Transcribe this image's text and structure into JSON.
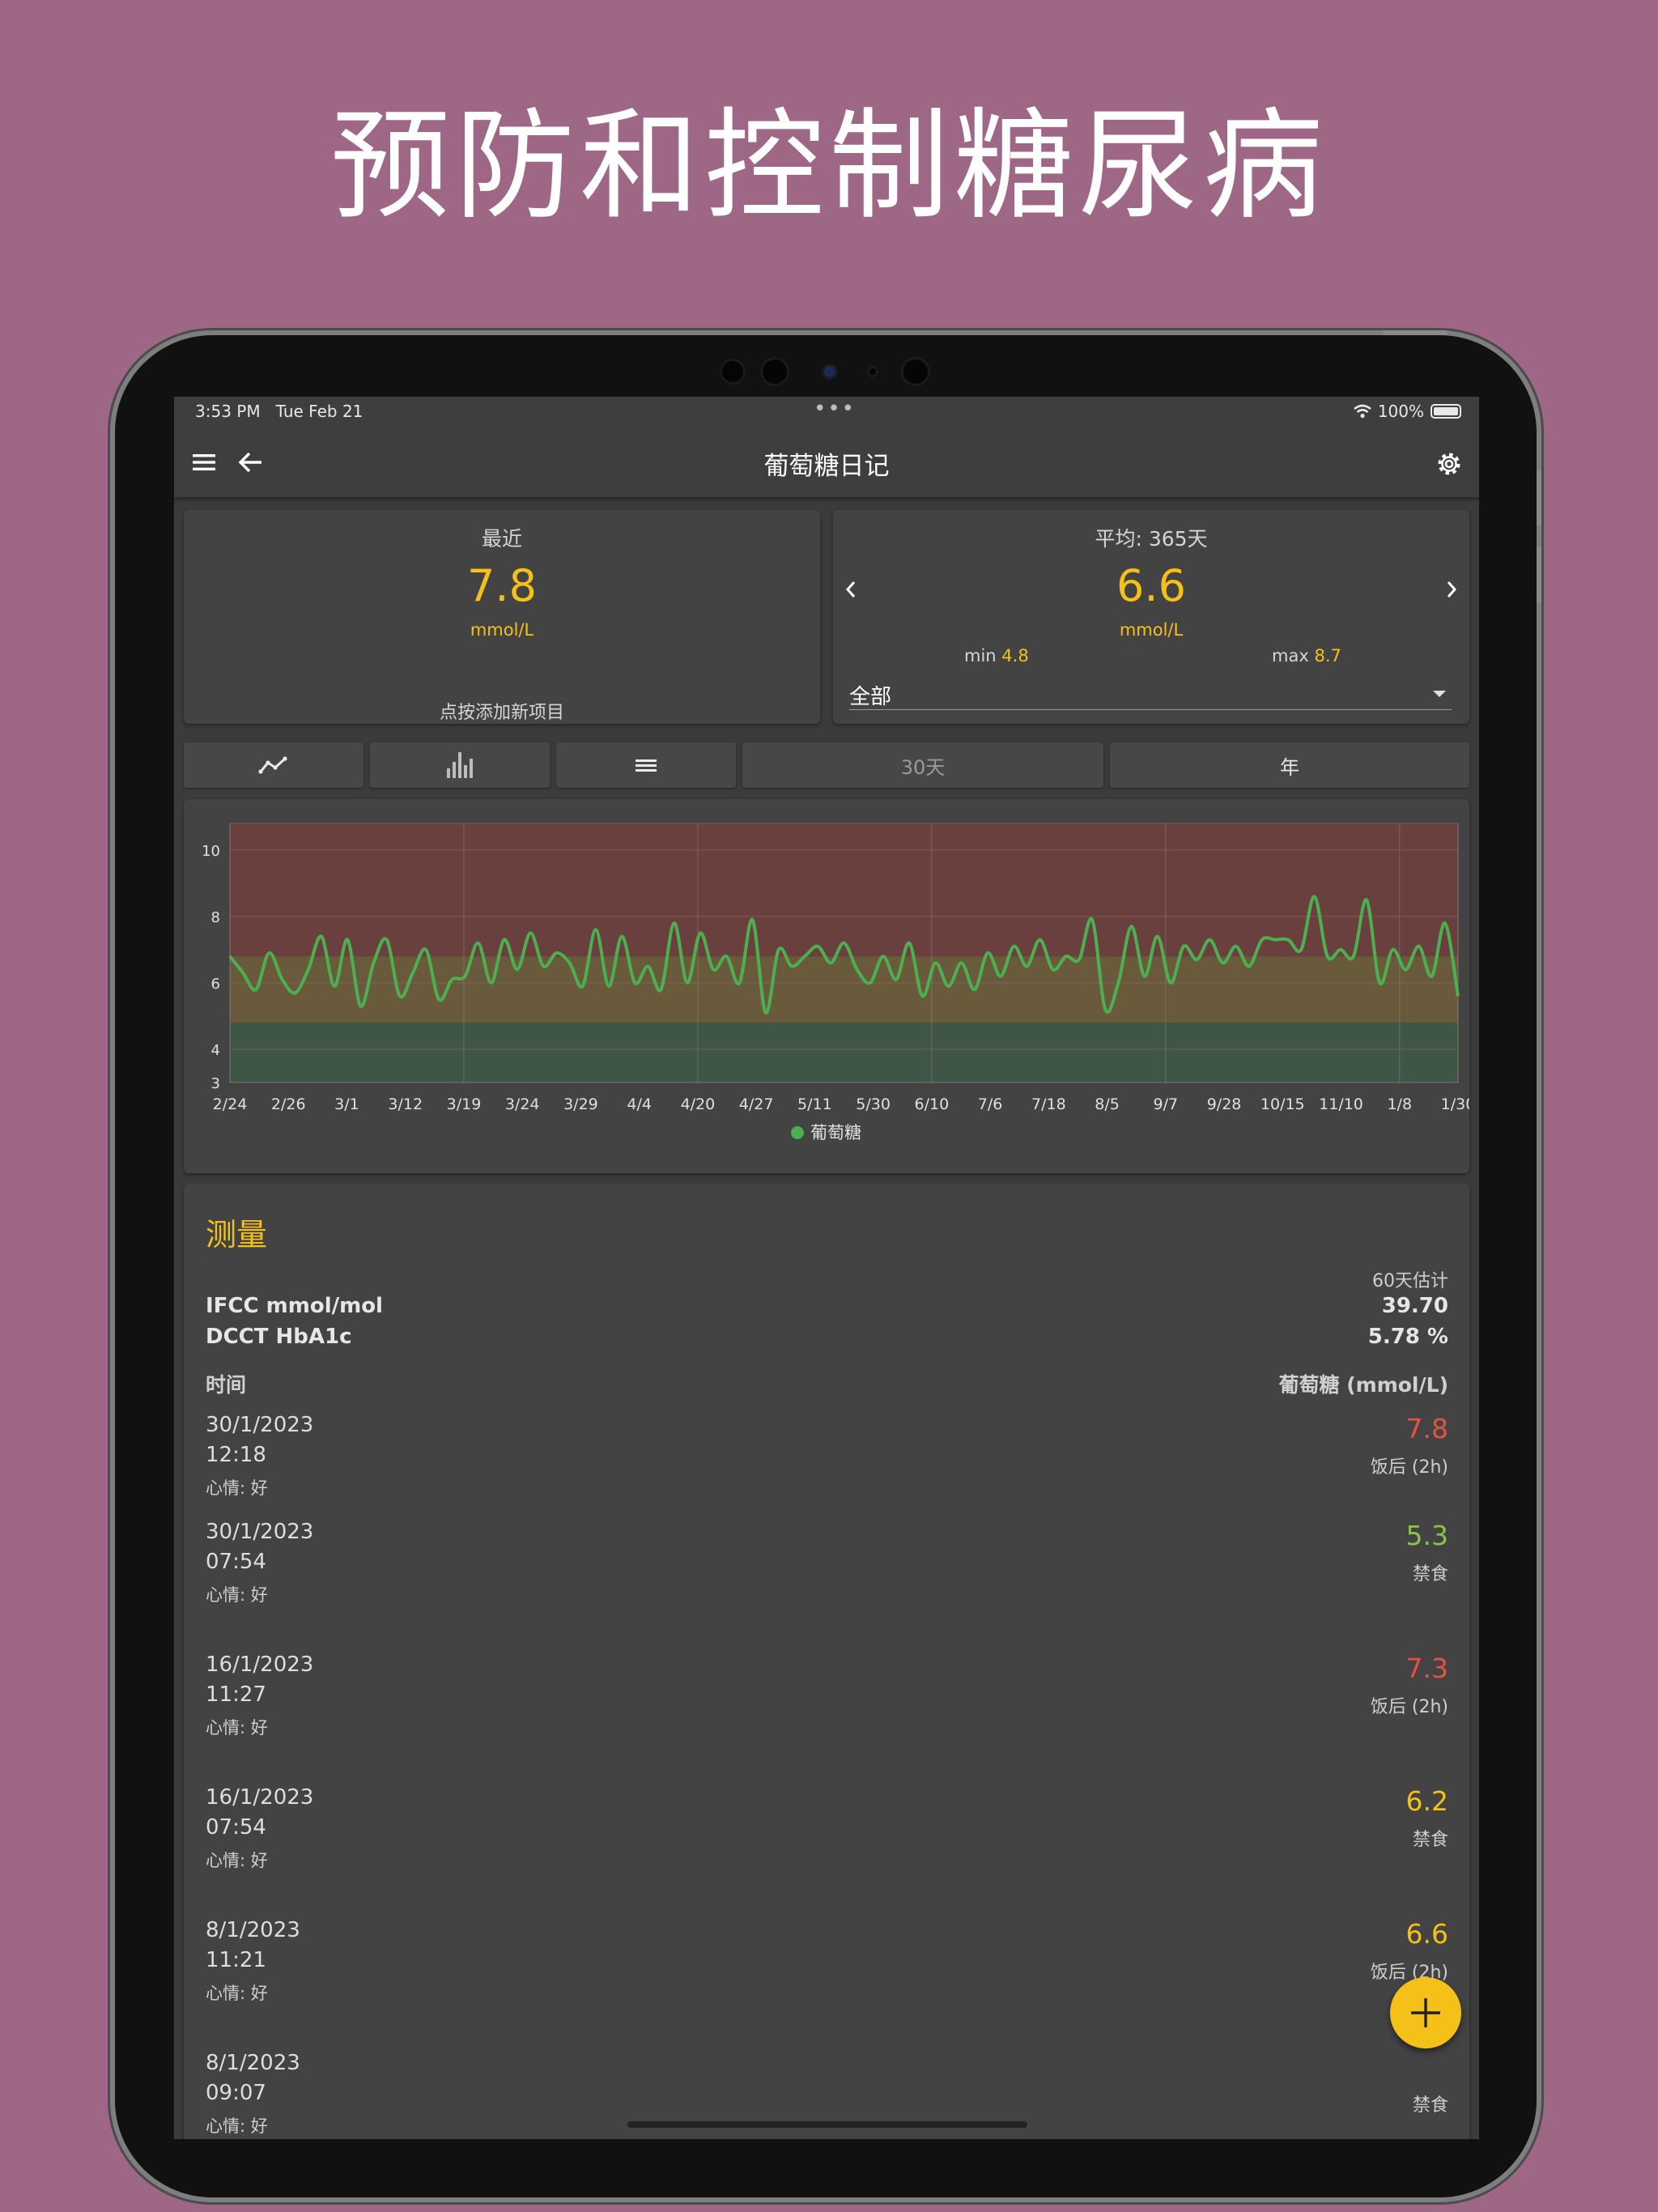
{
  "promo": {
    "title": "预防和控制糖尿病"
  },
  "status_bar": {
    "time": "3:53 PM   Tue Feb 21",
    "dots": "•••",
    "battery": "100%"
  },
  "app_bar": {
    "title": "葡萄糖日记",
    "icons": [
      "menu-icon",
      "back-arrow-icon",
      "gear-icon"
    ]
  },
  "recent_card": {
    "label": "最近",
    "value": "7.8",
    "unit": "mmol/L",
    "hint": "点按添加新项目"
  },
  "average_card": {
    "label": "平均: 365天",
    "value": "6.6",
    "unit": "mmol/L",
    "min_label": "min",
    "min_value": "4.8",
    "max_label": "max",
    "max_value": "8.7",
    "filter_value": "全部"
  },
  "view_tabs": {
    "icons": [
      "line-chart-icon",
      "bar-chart-icon",
      "list-icon"
    ],
    "range_30": "30天",
    "range_year": "年"
  },
  "chart_data": {
    "type": "line",
    "x_ticks": [
      "2/24",
      "2/26",
      "3/1",
      "3/12",
      "3/19",
      "3/24",
      "3/29",
      "4/4",
      "4/20",
      "4/27",
      "5/11",
      "5/30",
      "6/10",
      "7/6",
      "7/18",
      "8/5",
      "9/7",
      "9/28",
      "10/15",
      "11/10",
      "1/8",
      "1/30"
    ],
    "y_ticks": [
      "10",
      "8",
      "6",
      "4",
      "3"
    ],
    "ylim": [
      3,
      10.8
    ],
    "bands": [
      {
        "from": 3,
        "to": 4.8,
        "color": "#3f5646"
      },
      {
        "from": 4.8,
        "to": 6.8,
        "color": "#6a5a3c"
      },
      {
        "from": 6.8,
        "to": 10.8,
        "color": "#6a403f"
      }
    ],
    "grid": true,
    "legend": {
      "label": "葡萄糖",
      "color": "#4caf50",
      "position": "bottom-center"
    },
    "series": [
      {
        "color": "#4caf50",
        "values": [
          6.8,
          6.3,
          5.8,
          6.9,
          6.1,
          5.7,
          6.4,
          7.4,
          5.9,
          7.3,
          5.3,
          6.6,
          7.3,
          5.6,
          6.3,
          7.0,
          5.5,
          6.1,
          6.2,
          7.2,
          6.0,
          7.3,
          6.4,
          7.5,
          6.5,
          6.9,
          6.6,
          5.9,
          7.6,
          5.9,
          7.4,
          6.0,
          6.5,
          5.8,
          7.8,
          6.0,
          7.5,
          6.4,
          6.8,
          6.0,
          7.9,
          5.1,
          7.0,
          6.5,
          6.8,
          7.1,
          6.6,
          7.2,
          6.4,
          6.0,
          6.8,
          6.1,
          7.2,
          5.6,
          6.6,
          5.9,
          6.6,
          5.8,
          6.9,
          6.2,
          7.1,
          6.5,
          7.3,
          6.4,
          6.8,
          6.7,
          7.9,
          5.2,
          6.0,
          7.7,
          6.2,
          7.4,
          6.0,
          7.1,
          6.7,
          7.3,
          6.6,
          7.1,
          6.5,
          7.3,
          7.3,
          7.3,
          7.0,
          8.6,
          6.8,
          7.0,
          6.8,
          8.5,
          6.0,
          7.0,
          6.4,
          7.1,
          6.2,
          7.8,
          5.6
        ]
      }
    ]
  },
  "measurements": {
    "title": "测量",
    "estimate_label": "60天估计",
    "ifcc_label": "IFCC mmol/mol",
    "ifcc_value": "39.70",
    "dcct_label": "DCCT HbA1c",
    "dcct_value": "5.78 %",
    "col_time": "时间",
    "col_glucose": "葡萄糖 (mmol/L)",
    "rows": [
      {
        "date": "30/1/2023",
        "time": "12:18",
        "mood": "心情: 好",
        "value": "7.8",
        "tag": "饭后 (2h)",
        "color": "#e8503f"
      },
      {
        "date": "30/1/2023",
        "time": "07:54",
        "mood": "心情: 好",
        "value": "5.3",
        "tag": "禁食",
        "color": "#8bc34a"
      },
      {
        "date": "16/1/2023",
        "time": "11:27",
        "mood": "心情: 好",
        "value": "7.3",
        "tag": "饭后 (2h)",
        "color": "#e8503f"
      },
      {
        "date": "16/1/2023",
        "time": "07:54",
        "mood": "心情: 好",
        "value": "6.2",
        "tag": "禁食",
        "color": "#f5c018"
      },
      {
        "date": "8/1/2023",
        "time": "11:21",
        "mood": "心情: 好",
        "value": "6.6",
        "tag": "饭后 (2h)",
        "color": "#f5c018"
      },
      {
        "date": "8/1/2023",
        "time": "09:07",
        "mood": "心情: 好",
        "value": "",
        "tag": "禁食",
        "color": "#f5c018"
      }
    ]
  },
  "fab": {
    "icon": "plus-icon"
  }
}
